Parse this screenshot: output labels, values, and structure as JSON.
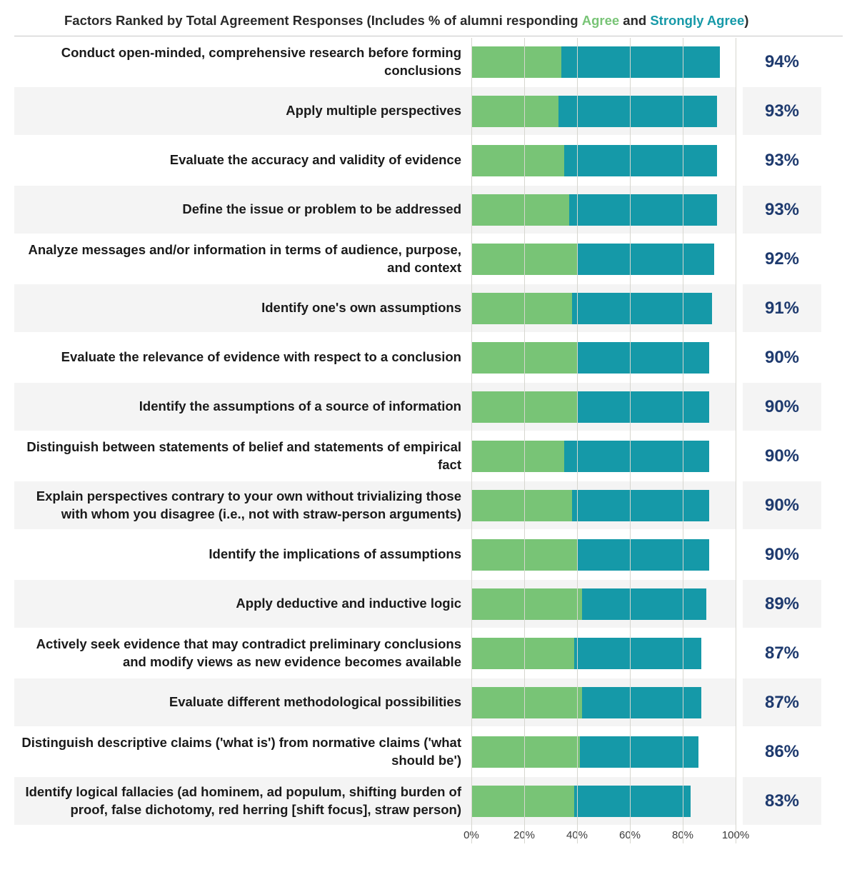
{
  "chart": {
    "title_prefix": "Factors Ranked by Total Agreement Responses (Includes % of alumni responding ",
    "title_agree": "Agree",
    "title_and": " and ",
    "title_strongly": "Strongly Agree",
    "title_suffix": ")",
    "colors": {
      "agree": "#78c476",
      "strongly_agree": "#1599a8",
      "pct_text": "#1e3a6e",
      "grid": "#d6d6cf",
      "stripe_bg": "#f4f4f4",
      "plain_bg": "#ffffff",
      "title_text": "#2a2a2a",
      "label_text": "#1a1a1a"
    },
    "xaxis": {
      "min": 0,
      "max": 100,
      "ticks": [
        0,
        20,
        40,
        60,
        80,
        100
      ],
      "tick_labels": [
        "0%",
        "20%",
        "40%",
        "60%",
        "80%",
        "100%"
      ]
    },
    "rows": [
      {
        "label": "Conduct open-minded, comprehensive research before forming conclusions",
        "agree": 34,
        "strongly": 60,
        "total": "94%"
      },
      {
        "label": "Apply multiple perspectives",
        "agree": 33,
        "strongly": 60,
        "total": "93%"
      },
      {
        "label": "Evaluate the accuracy and validity of evidence",
        "agree": 35,
        "strongly": 58,
        "total": "93%"
      },
      {
        "label": "Define the issue or problem to be addressed",
        "agree": 37,
        "strongly": 56,
        "total": "93%"
      },
      {
        "label": "Analyze messages and/or information in terms of audience, purpose, and context",
        "agree": 40,
        "strongly": 52,
        "total": "92%"
      },
      {
        "label": "Identify one's own assumptions",
        "agree": 38,
        "strongly": 53,
        "total": "91%"
      },
      {
        "label": "Evaluate the relevance of evidence with respect to a conclusion",
        "agree": 40,
        "strongly": 50,
        "total": "90%"
      },
      {
        "label": "Identify the assumptions of a source of information",
        "agree": 40,
        "strongly": 50,
        "total": "90%"
      },
      {
        "label": "Distinguish between statements of belief and statements of empirical fact",
        "agree": 35,
        "strongly": 55,
        "total": "90%"
      },
      {
        "label": "Explain perspectives contrary to your own without trivializing those with whom you disagree (i.e., not with straw-person arguments)",
        "agree": 38,
        "strongly": 52,
        "total": "90%"
      },
      {
        "label": "Identify the implications of assumptions",
        "agree": 40,
        "strongly": 50,
        "total": "90%"
      },
      {
        "label": "Apply deductive and inductive logic",
        "agree": 42,
        "strongly": 47,
        "total": "89%"
      },
      {
        "label": "Actively seek evidence that may contradict preliminary conclusions and modify views as new evidence becomes available",
        "agree": 39,
        "strongly": 48,
        "total": "87%"
      },
      {
        "label": "Evaluate different methodological possibilities",
        "agree": 42,
        "strongly": 45,
        "total": "87%"
      },
      {
        "label": "Distinguish descriptive claims ('what is') from normative claims ('what should be')",
        "agree": 41,
        "strongly": 45,
        "total": "86%"
      },
      {
        "label": "Identify logical fallacies (ad hominem, ad populum, shifting burden of proof, false dichotomy, red herring [shift focus], straw person)",
        "agree": 39,
        "strongly": 44,
        "total": "83%"
      }
    ]
  }
}
